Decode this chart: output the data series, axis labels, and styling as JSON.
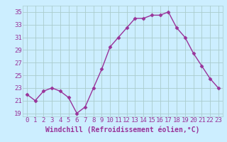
{
  "x": [
    0,
    1,
    2,
    3,
    4,
    5,
    6,
    7,
    8,
    9,
    10,
    11,
    12,
    13,
    14,
    15,
    16,
    17,
    18,
    19,
    20,
    21,
    22,
    23
  ],
  "y": [
    22,
    21,
    22.5,
    23,
    22.5,
    21.5,
    19,
    20,
    23,
    26,
    29.5,
    31,
    32.5,
    34,
    34,
    34.5,
    34.5,
    35,
    32.5,
    31,
    28.5,
    26.5,
    24.5,
    23
  ],
  "line_color": "#993399",
  "marker": "D",
  "marker_size": 2.5,
  "linewidth": 1.0,
  "bg_color": "#cceeff",
  "grid_color": "#aacccc",
  "xlabel": "Windchill (Refroidissement éolien,°C)",
  "xlabel_fontsize": 7,
  "tick_color": "#993399",
  "tick_fontsize": 6.5,
  "ylim": [
    18.5,
    36
  ],
  "yticks": [
    19,
    21,
    23,
    25,
    27,
    29,
    31,
    33,
    35
  ],
  "xticks": [
    0,
    1,
    2,
    3,
    4,
    5,
    6,
    7,
    8,
    9,
    10,
    11,
    12,
    13,
    14,
    15,
    16,
    17,
    18,
    19,
    20,
    21,
    22,
    23
  ],
  "xlim": [
    -0.5,
    23.5
  ]
}
